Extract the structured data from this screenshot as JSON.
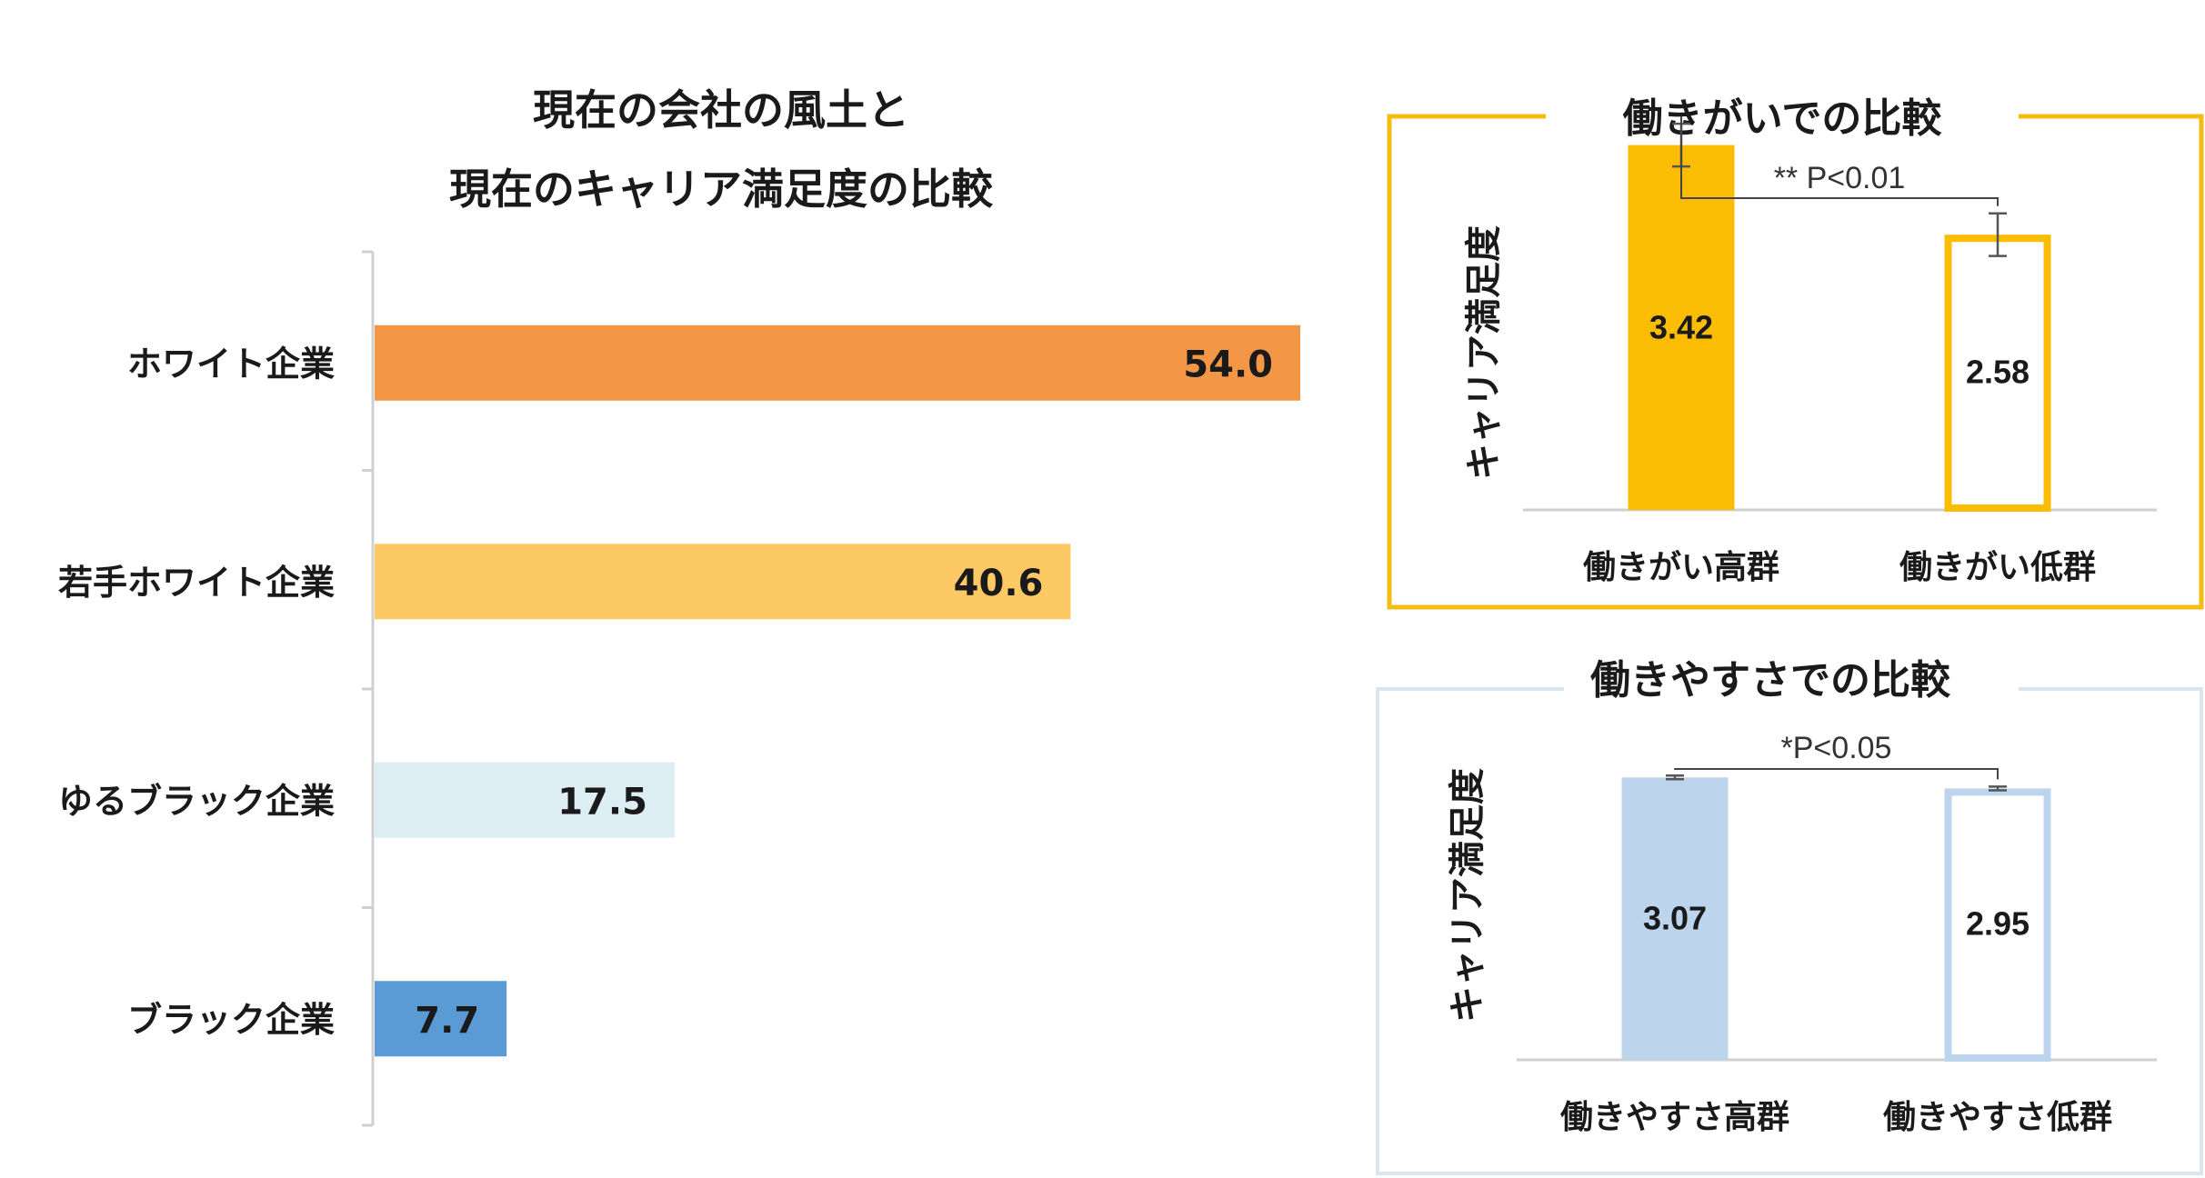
{
  "colors": {
    "orange": "#f39747",
    "light_orange": "#fdc965",
    "light_blue": "#dceef4",
    "blue": "#5b9bd5",
    "gold": "#fbbc04",
    "pale_blue": "#bcd5ec",
    "panel1_border": "#f4bd14",
    "panel2_border": "#d8e6f2"
  },
  "chart_data": [
    {
      "type": "bar",
      "orientation": "horizontal",
      "title_line1": "現在の会社の風土と",
      "title_line2": "現在のキャリア満足度の比較",
      "categories": [
        "ホワイト企業",
        "若手ホワイト企業",
        "ゆるブラック企業",
        "ブラック企業"
      ],
      "values": [
        54.0,
        40.6,
        17.5,
        7.7
      ],
      "value_labels": [
        "54.0",
        "40.6",
        "17.5",
        "7.7"
      ],
      "bar_colors": [
        "#f39747",
        "#fdc965",
        "#dceef4",
        "#5b9bd5"
      ],
      "xlim": [
        0,
        54.0
      ],
      "grid": false
    },
    {
      "type": "bar",
      "title": "働きがいでの比較",
      "ylabel": "キャリア満足度",
      "categories": [
        "働きがい高群",
        "働きがい低群"
      ],
      "values": [
        3.42,
        2.58
      ],
      "value_labels": [
        "3.42",
        "2.58"
      ],
      "error": [
        0.2,
        0.2
      ],
      "significance": "** P<0.01",
      "styles": [
        "filled",
        "outline"
      ],
      "color": "#fbbc04",
      "ylim": [
        0,
        3.8
      ]
    },
    {
      "type": "bar",
      "title": "働きやすさでの比較",
      "ylabel": "キャリア満足度",
      "categories": [
        "働きやすさ高群",
        "働きやすさ低群"
      ],
      "values": [
        3.07,
        2.95
      ],
      "value_labels": [
        "3.07",
        "2.95"
      ],
      "error": [
        0.02,
        0.02
      ],
      "significance": "*P<0.05",
      "styles": [
        "filled",
        "outline"
      ],
      "color": "#bcd5ec",
      "ylim": [
        0,
        3.3
      ]
    }
  ]
}
